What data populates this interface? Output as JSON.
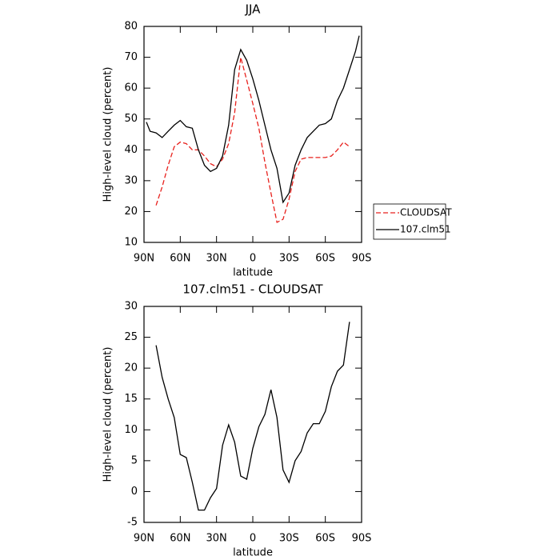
{
  "chart_data": [
    {
      "type": "line",
      "title": "JJA",
      "xlabel": "latitude",
      "ylabel": "High-level cloud (percent)",
      "x": [
        88,
        85,
        80,
        75,
        70,
        65,
        60,
        55,
        50,
        45,
        40,
        35,
        30,
        25,
        20,
        15,
        10,
        5,
        0,
        -5,
        -10,
        -15,
        -20,
        -25,
        -30,
        -35,
        -40,
        -45,
        -50,
        -55,
        -60,
        -65,
        -70,
        -75,
        -80,
        -85,
        -88
      ],
      "xlim": [
        90,
        -90
      ],
      "xticks": [
        {
          "value": 90,
          "label": "90N"
        },
        {
          "value": 60,
          "label": "60N"
        },
        {
          "value": 30,
          "label": "30N"
        },
        {
          "value": 0,
          "label": "0"
        },
        {
          "value": -30,
          "label": "30S"
        },
        {
          "value": -60,
          "label": "60S"
        },
        {
          "value": -90,
          "label": "90S"
        }
      ],
      "ylim": [
        10,
        80
      ],
      "yticks": [
        10,
        20,
        30,
        40,
        50,
        60,
        70,
        80
      ],
      "legend": "right",
      "series": [
        {
          "name": "CLOUDSAT",
          "color": "#e8211d",
          "dashed": true,
          "values": [
            null,
            null,
            22,
            28,
            35,
            41,
            42.5,
            42,
            40,
            40,
            38,
            35.5,
            34.5,
            37,
            42,
            52,
            70,
            62.6,
            55,
            47,
            36,
            26,
            16.5,
            17.5,
            24,
            33,
            37,
            37.5,
            37.5,
            37.5,
            37.5,
            38,
            40,
            42.5,
            41,
            null,
            null
          ]
        },
        {
          "name": "107.clm51",
          "color": "#000000",
          "dashed": false,
          "values": [
            49,
            46,
            45.5,
            44,
            46,
            48,
            49.5,
            47.5,
            47,
            40,
            35,
            33,
            34,
            38,
            48,
            66,
            72.5,
            69,
            63,
            56,
            48,
            40,
            34,
            23,
            26,
            35,
            40,
            44,
            46,
            48,
            48.5,
            50,
            56,
            60,
            66,
            72,
            77
          ]
        }
      ]
    },
    {
      "type": "line",
      "title": "107.clm51 - CLOUDSAT",
      "xlabel": "latitude",
      "ylabel": "High-level cloud (percent)",
      "x": [
        88,
        85,
        80,
        75,
        70,
        65,
        60,
        55,
        50,
        45,
        40,
        35,
        30,
        25,
        20,
        15,
        10,
        5,
        0,
        -5,
        -10,
        -15,
        -20,
        -25,
        -30,
        -35,
        -40,
        -45,
        -50,
        -55,
        -60,
        -65,
        -70,
        -75,
        -80,
        -85,
        -88
      ],
      "xlim": [
        90,
        -90
      ],
      "xticks": [
        {
          "value": 90,
          "label": "90N"
        },
        {
          "value": 60,
          "label": "60N"
        },
        {
          "value": 30,
          "label": "30N"
        },
        {
          "value": 0,
          "label": "0"
        },
        {
          "value": -30,
          "label": "30S"
        },
        {
          "value": -60,
          "label": "60S"
        },
        {
          "value": -90,
          "label": "90S"
        }
      ],
      "ylim": [
        -5,
        30
      ],
      "yticks": [
        -5,
        0,
        5,
        10,
        15,
        20,
        25,
        30
      ],
      "series": [
        {
          "color": "#000000",
          "dashed": false,
          "values": [
            null,
            null,
            23.7,
            18.5,
            15,
            12,
            6,
            5.5,
            1.5,
            -3,
            -3,
            -1,
            0.5,
            7.5,
            10.8,
            8,
            2.5,
            2,
            7,
            10.5,
            12.5,
            16.5,
            12,
            3.5,
            1.5,
            5,
            6.5,
            9.5,
            11,
            11,
            13,
            17,
            19.5,
            20.5,
            27.5,
            null,
            null
          ]
        }
      ]
    }
  ]
}
